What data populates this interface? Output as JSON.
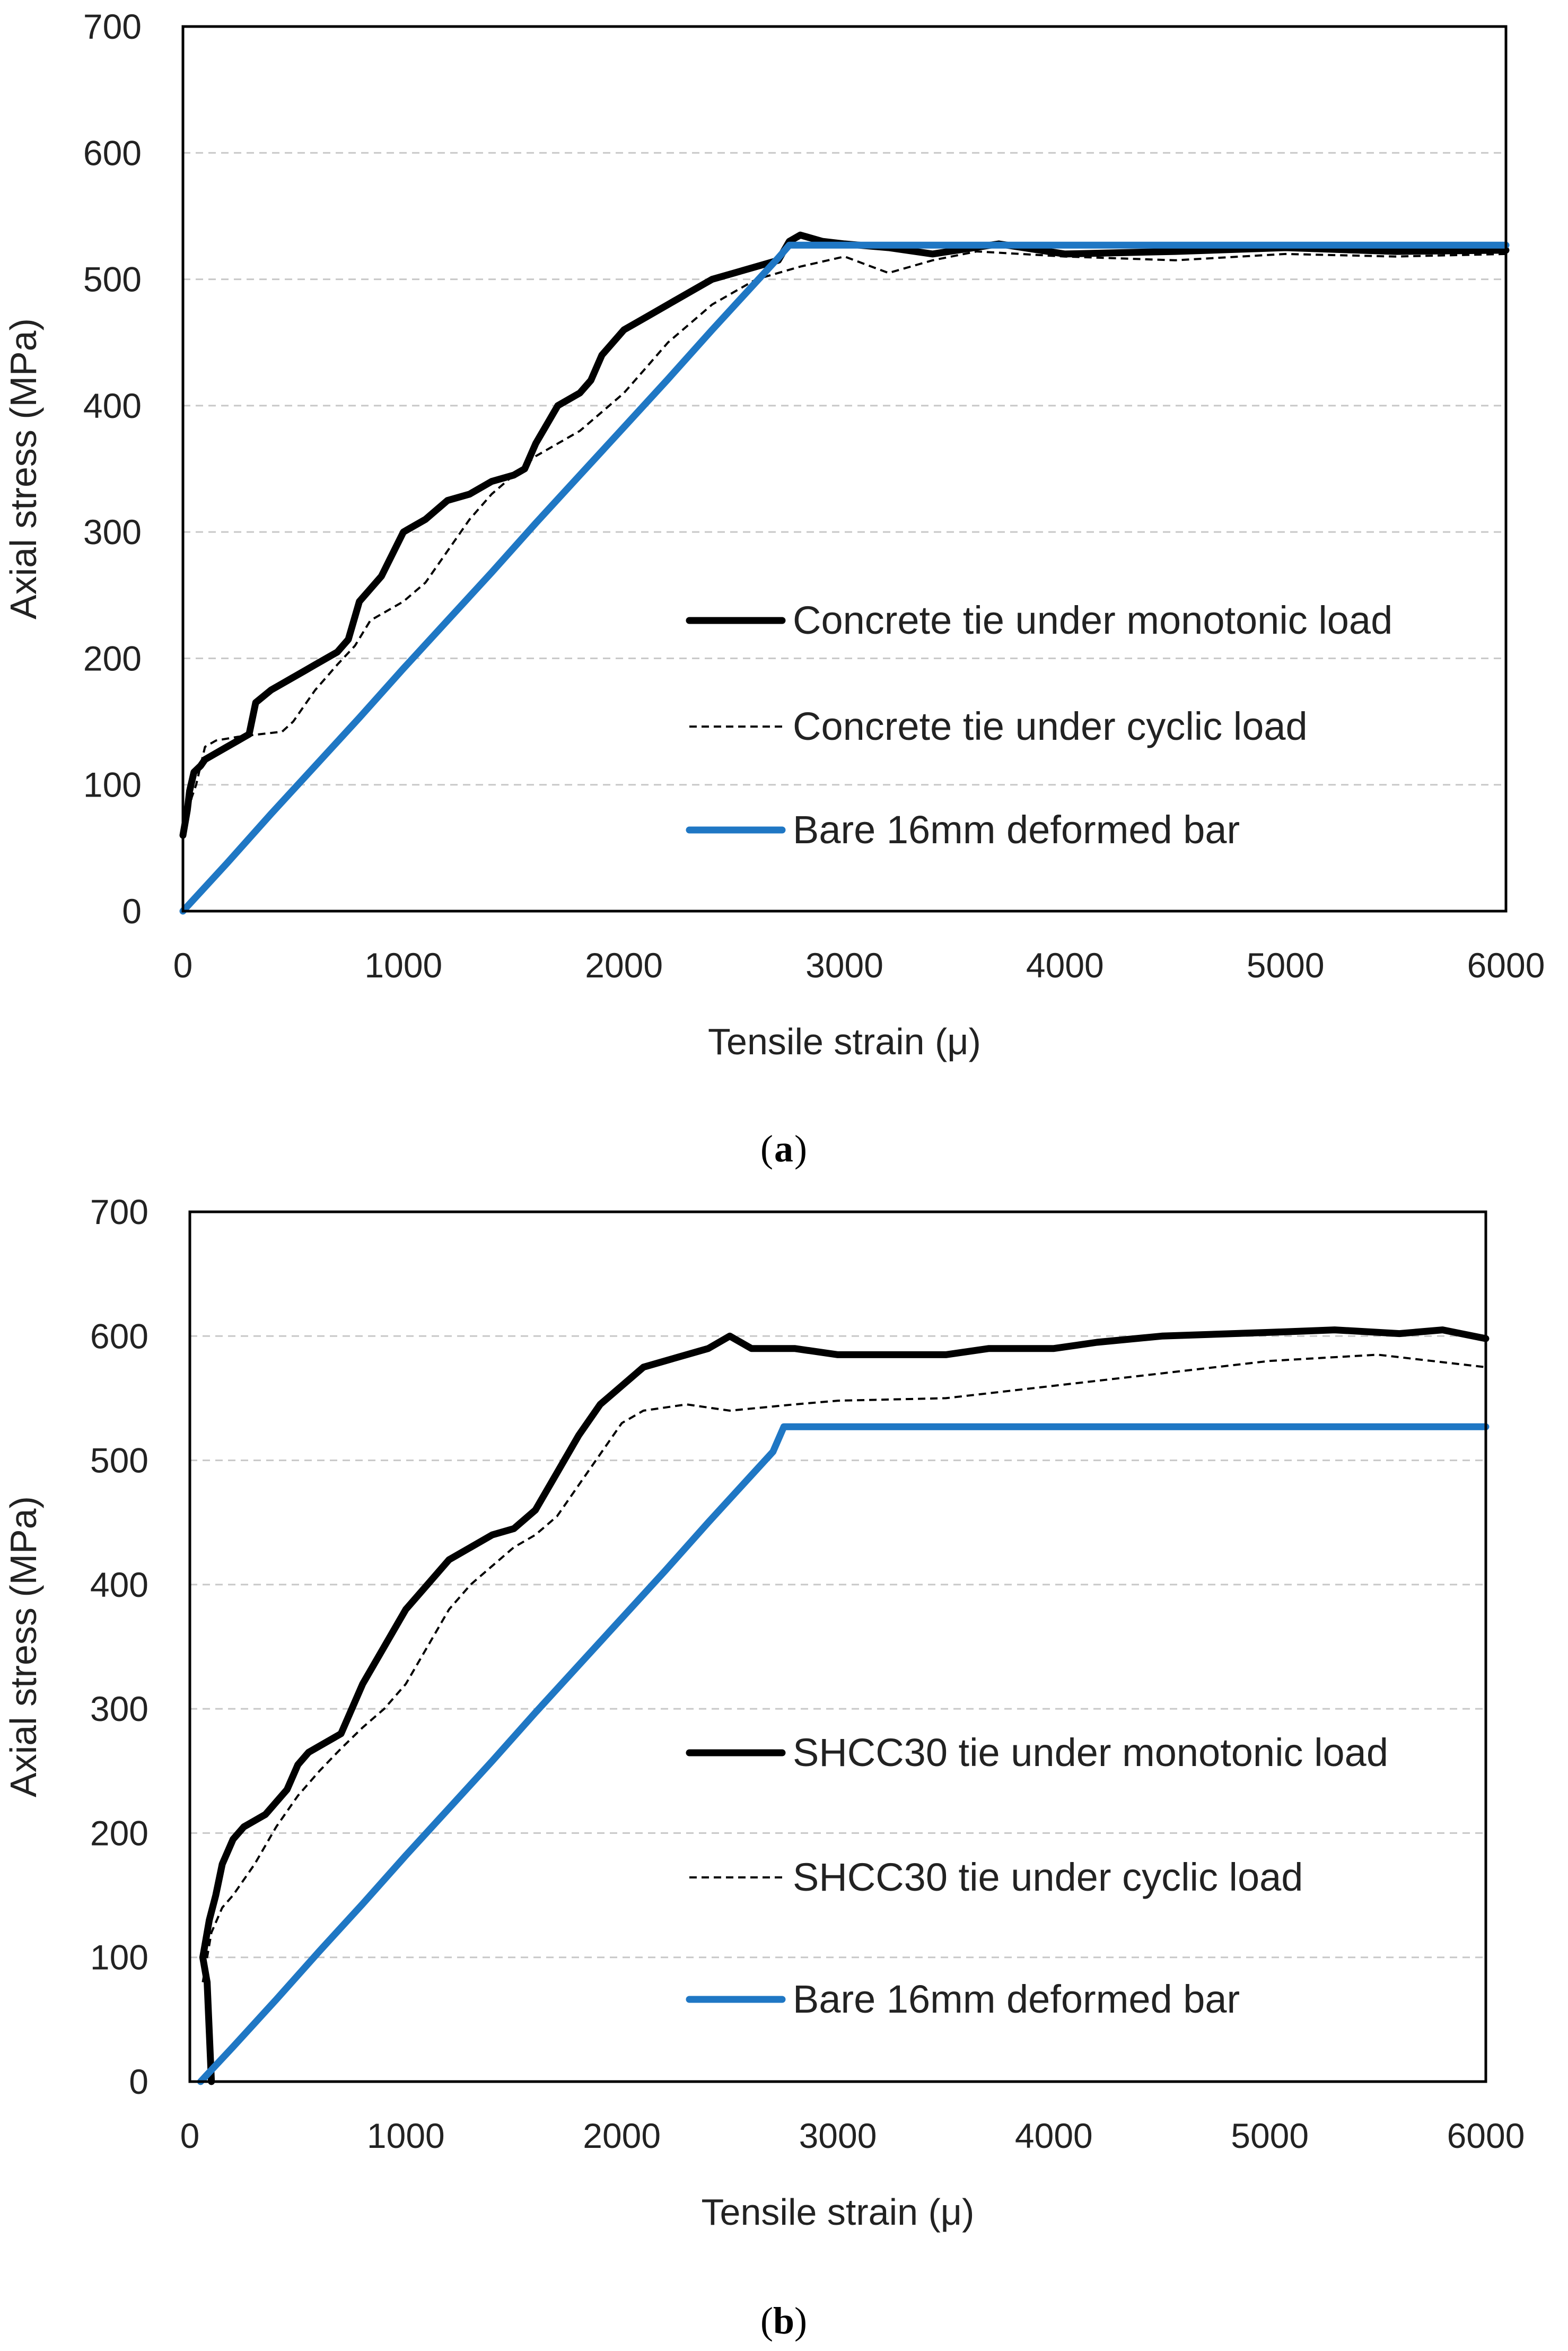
{
  "chart_data": [
    {
      "type": "line",
      "caption": "a",
      "xlabel": "Tensile strain (μ)",
      "ylabel": "Axial stress (MPa)",
      "xlim": [
        0,
        6000
      ],
      "ylim": [
        0,
        700
      ],
      "xticks": [
        0,
        1000,
        2000,
        3000,
        4000,
        5000,
        6000
      ],
      "yticks": [
        0,
        100,
        200,
        300,
        400,
        500,
        600,
        700
      ],
      "grid": true,
      "legend_position": "bottom-right",
      "series": [
        {
          "name": "Concrete tie under monotonic load",
          "style": "thick-black",
          "x": [
            0,
            20,
            30,
            50,
            80,
            100,
            150,
            200,
            250,
            300,
            330,
            400,
            450,
            500,
            550,
            600,
            700,
            750,
            800,
            850,
            900,
            1000,
            1050,
            1100,
            1200,
            1300,
            1400,
            1500,
            1550,
            1600,
            1650,
            1700,
            1800,
            1850,
            1900,
            2000,
            2100,
            2200,
            2300,
            2400,
            2500,
            2600,
            2700,
            2750,
            2800,
            2900,
            3000,
            3200,
            3400,
            3700,
            4000,
            4500,
            5000,
            5500,
            6000
          ],
          "y": [
            60,
            80,
            95,
            110,
            115,
            120,
            125,
            130,
            135,
            140,
            165,
            175,
            180,
            185,
            190,
            195,
            205,
            215,
            245,
            255,
            265,
            300,
            305,
            310,
            325,
            330,
            340,
            345,
            350,
            370,
            385,
            400,
            410,
            420,
            440,
            460,
            470,
            480,
            490,
            500,
            505,
            510,
            515,
            530,
            535,
            530,
            528,
            525,
            520,
            528,
            520,
            522,
            525,
            522,
            523
          ]
        },
        {
          "name": "Concrete tie under cyclic load",
          "style": "thin-dashed-black",
          "x": [
            0,
            40,
            60,
            100,
            150,
            250,
            350,
            450,
            500,
            600,
            700,
            780,
            850,
            1000,
            1100,
            1200,
            1300,
            1400,
            1500,
            1600,
            1700,
            1800,
            1900,
            2000,
            2100,
            2200,
            2300,
            2400,
            2500,
            2600,
            2700,
            2800,
            3000,
            3200,
            3400,
            3600,
            4000,
            4500,
            5000,
            5500,
            6000
          ],
          "y": [
            60,
            90,
            100,
            130,
            135,
            138,
            140,
            142,
            150,
            175,
            195,
            210,
            230,
            245,
            260,
            285,
            310,
            330,
            345,
            360,
            370,
            380,
            395,
            410,
            430,
            450,
            465,
            480,
            490,
            500,
            505,
            510,
            518,
            505,
            515,
            522,
            518,
            515,
            520,
            518,
            520
          ]
        },
        {
          "name": "Bare 16mm deformed bar",
          "style": "thick-blue",
          "x": [
            0,
            200,
            400,
            600,
            800,
            1000,
            1200,
            1400,
            1600,
            1800,
            2000,
            2200,
            2400,
            2600,
            2700,
            2750,
            3000,
            4000,
            5000,
            6000
          ],
          "y": [
            0,
            38,
            77,
            115,
            153,
            192,
            230,
            268,
            307,
            345,
            383,
            421,
            460,
            498,
            517,
            527,
            527,
            527,
            527,
            527
          ]
        }
      ]
    },
    {
      "type": "line",
      "caption": "b",
      "xlabel": "Tensile strain (μ)",
      "ylabel": "Axial stress (MPa)",
      "xlim": [
        0,
        6000
      ],
      "ylim": [
        0,
        700
      ],
      "xticks": [
        0,
        1000,
        2000,
        3000,
        4000,
        5000,
        6000
      ],
      "yticks": [
        0,
        100,
        200,
        300,
        400,
        500,
        600,
        700
      ],
      "grid": true,
      "legend_position": "bottom-right",
      "series": [
        {
          "name": "SHCC30 tie under monotonic load",
          "style": "thick-black",
          "x": [
            100,
            80,
            60,
            90,
            120,
            150,
            200,
            250,
            300,
            350,
            400,
            450,
            500,
            550,
            600,
            700,
            800,
            900,
            1000,
            1100,
            1200,
            1300,
            1400,
            1500,
            1600,
            1700,
            1800,
            1900,
            2000,
            2100,
            2200,
            2300,
            2400,
            2500,
            2600,
            2800,
            3000,
            3500,
            3700,
            4000,
            4200,
            4500,
            5000,
            5300,
            5600,
            5800,
            6000
          ],
          "y": [
            0,
            80,
            100,
            130,
            150,
            175,
            195,
            205,
            210,
            215,
            225,
            235,
            255,
            265,
            270,
            280,
            320,
            350,
            380,
            400,
            420,
            430,
            440,
            445,
            460,
            490,
            520,
            545,
            560,
            575,
            580,
            585,
            590,
            600,
            590,
            590,
            585,
            585,
            590,
            590,
            595,
            600,
            603,
            605,
            602,
            605,
            598
          ]
        },
        {
          "name": "SHCC30 tie under cyclic load",
          "style": "thin-dashed-black",
          "x": [
            60,
            80,
            100,
            150,
            200,
            300,
            400,
            500,
            600,
            700,
            800,
            900,
            1000,
            1100,
            1200,
            1300,
            1400,
            1500,
            1600,
            1700,
            1800,
            1900,
            2000,
            2100,
            2300,
            2500,
            2800,
            3000,
            3500,
            4000,
            4500,
            5000,
            5500,
            6000
          ],
          "y": [
            80,
            100,
            120,
            140,
            150,
            175,
            205,
            230,
            250,
            268,
            285,
            300,
            320,
            350,
            380,
            400,
            415,
            430,
            440,
            455,
            480,
            505,
            530,
            540,
            545,
            540,
            545,
            548,
            550,
            560,
            570,
            580,
            585,
            575
          ]
        },
        {
          "name": "Bare 16mm deformed bar",
          "style": "thick-blue",
          "x": [
            50,
            200,
            400,
            600,
            800,
            1000,
            1200,
            1400,
            1600,
            1800,
            2000,
            2200,
            2400,
            2600,
            2700,
            2750,
            3000,
            4000,
            5000,
            6000
          ],
          "y": [
            0,
            28,
            66,
            105,
            143,
            182,
            220,
            258,
            297,
            335,
            373,
            411,
            450,
            488,
            507,
            527,
            527,
            527,
            527,
            527
          ]
        }
      ]
    }
  ]
}
